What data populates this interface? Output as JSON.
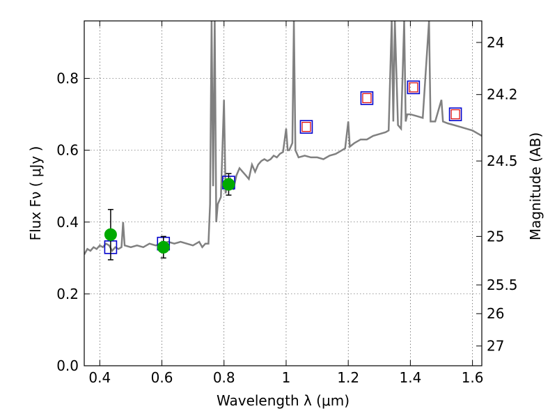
{
  "chart_data": {
    "type": "scatter",
    "xlabel": "Wavelength  λ (μm)",
    "ylabel": "Flux  Fν  ( μJy )",
    "ylabel_right": "Magnitude (AB)",
    "xlim": [
      0.35,
      1.63
    ],
    "ylim": [
      0.0,
      0.96
    ],
    "grid": true,
    "x_ticks": [
      0.4,
      0.6,
      0.8,
      1.0,
      1.2,
      1.4,
      1.6
    ],
    "x_tick_labels": [
      "0.4",
      "0.6",
      "0.8",
      "1",
      "1.2",
      "1.4",
      "1.6"
    ],
    "y_ticks": [
      0.0,
      0.2,
      0.4,
      0.6,
      0.8
    ],
    "y_tick_labels": [
      "0.0",
      "0.2",
      "0.4",
      "0.6",
      "0.8"
    ],
    "right_ticks": [
      {
        "flux": 0.9,
        "label": "24"
      },
      {
        "flux": 0.755,
        "label": "24.2"
      },
      {
        "flux": 0.57,
        "label": "24.5"
      },
      {
        "flux": 0.36,
        "label": "25"
      },
      {
        "flux": 0.225,
        "label": "25.5"
      },
      {
        "flux": 0.145,
        "label": "26"
      },
      {
        "flux": 0.055,
        "label": "27"
      }
    ],
    "colors": {
      "model": "#808080",
      "observed": "#00aa00",
      "model_box": "#0000cc",
      "model_box_inner": "#dd0000",
      "errorbar": "#000000"
    },
    "series": [
      {
        "type": "line",
        "points": [
          [
            0.35,
            0.31
          ],
          [
            0.36,
            0.325
          ],
          [
            0.37,
            0.32
          ],
          [
            0.38,
            0.33
          ],
          [
            0.39,
            0.325
          ],
          [
            0.4,
            0.335
          ],
          [
            0.41,
            0.33
          ],
          [
            0.42,
            0.34
          ],
          [
            0.43,
            0.335
          ],
          [
            0.44,
            0.32
          ],
          [
            0.45,
            0.33
          ],
          [
            0.46,
            0.325
          ],
          [
            0.47,
            0.33
          ],
          [
            0.475,
            0.4
          ],
          [
            0.48,
            0.335
          ],
          [
            0.5,
            0.33
          ],
          [
            0.52,
            0.335
          ],
          [
            0.54,
            0.33
          ],
          [
            0.56,
            0.34
          ],
          [
            0.58,
            0.335
          ],
          [
            0.6,
            0.34
          ],
          [
            0.62,
            0.345
          ],
          [
            0.64,
            0.34
          ],
          [
            0.66,
            0.345
          ],
          [
            0.68,
            0.34
          ],
          [
            0.7,
            0.335
          ],
          [
            0.72,
            0.345
          ],
          [
            0.73,
            0.33
          ],
          [
            0.74,
            0.34
          ],
          [
            0.75,
            0.34
          ],
          [
            0.755,
            0.45
          ],
          [
            0.76,
            0.96
          ],
          [
            0.765,
            0.5
          ],
          [
            0.77,
            0.96
          ],
          [
            0.775,
            0.4
          ],
          [
            0.78,
            0.45
          ],
          [
            0.79,
            0.47
          ],
          [
            0.8,
            0.74
          ],
          [
            0.805,
            0.48
          ],
          [
            0.81,
            0.5
          ],
          [
            0.82,
            0.52
          ],
          [
            0.83,
            0.49
          ],
          [
            0.84,
            0.53
          ],
          [
            0.85,
            0.55
          ],
          [
            0.86,
            0.54
          ],
          [
            0.87,
            0.53
          ],
          [
            0.88,
            0.52
          ],
          [
            0.89,
            0.56
          ],
          [
            0.9,
            0.54
          ],
          [
            0.91,
            0.56
          ],
          [
            0.92,
            0.57
          ],
          [
            0.93,
            0.575
          ],
          [
            0.94,
            0.57
          ],
          [
            0.95,
            0.575
          ],
          [
            0.96,
            0.585
          ],
          [
            0.97,
            0.58
          ],
          [
            0.98,
            0.59
          ],
          [
            0.99,
            0.595
          ],
          [
            1.0,
            0.66
          ],
          [
            1.005,
            0.6
          ],
          [
            1.01,
            0.6
          ],
          [
            1.02,
            0.62
          ],
          [
            1.025,
            0.96
          ],
          [
            1.03,
            0.6
          ],
          [
            1.04,
            0.58
          ],
          [
            1.06,
            0.585
          ],
          [
            1.08,
            0.58
          ],
          [
            1.1,
            0.58
          ],
          [
            1.12,
            0.575
          ],
          [
            1.14,
            0.585
          ],
          [
            1.16,
            0.59
          ],
          [
            1.18,
            0.6
          ],
          [
            1.19,
            0.605
          ],
          [
            1.2,
            0.68
          ],
          [
            1.205,
            0.61
          ],
          [
            1.22,
            0.62
          ],
          [
            1.24,
            0.63
          ],
          [
            1.26,
            0.63
          ],
          [
            1.28,
            0.64
          ],
          [
            1.3,
            0.645
          ],
          [
            1.32,
            0.65
          ],
          [
            1.33,
            0.655
          ],
          [
            1.34,
            0.96
          ],
          [
            1.345,
            0.68
          ],
          [
            1.35,
            0.96
          ],
          [
            1.36,
            0.67
          ],
          [
            1.37,
            0.66
          ],
          [
            1.38,
            0.96
          ],
          [
            1.385,
            0.68
          ],
          [
            1.39,
            0.7
          ],
          [
            1.4,
            0.7
          ],
          [
            1.42,
            0.695
          ],
          [
            1.44,
            0.69
          ],
          [
            1.46,
            0.96
          ],
          [
            1.465,
            0.68
          ],
          [
            1.48,
            0.68
          ],
          [
            1.5,
            0.74
          ],
          [
            1.505,
            0.68
          ],
          [
            1.52,
            0.675
          ],
          [
            1.54,
            0.67
          ],
          [
            1.56,
            0.665
          ],
          [
            1.58,
            0.66
          ],
          [
            1.6,
            0.655
          ],
          [
            1.62,
            0.645
          ],
          [
            1.63,
            0.64
          ]
        ]
      },
      {
        "type": "observed",
        "points": [
          {
            "x": 0.435,
            "y": 0.365,
            "yerr_low": 0.07,
            "yerr_high": 0.07
          },
          {
            "x": 0.605,
            "y": 0.33,
            "yerr_low": 0.03,
            "yerr_high": 0.03
          },
          {
            "x": 0.815,
            "y": 0.505,
            "yerr_low": 0.03,
            "yerr_high": 0.03
          }
        ]
      },
      {
        "type": "model_photometry",
        "points": [
          {
            "x": 0.435,
            "y": 0.33
          },
          {
            "x": 0.605,
            "y": 0.34
          },
          {
            "x": 0.815,
            "y": 0.51
          },
          {
            "x": 1.065,
            "y": 0.665
          },
          {
            "x": 1.26,
            "y": 0.745
          },
          {
            "x": 1.41,
            "y": 0.775
          },
          {
            "x": 1.545,
            "y": 0.7
          }
        ]
      }
    ]
  }
}
